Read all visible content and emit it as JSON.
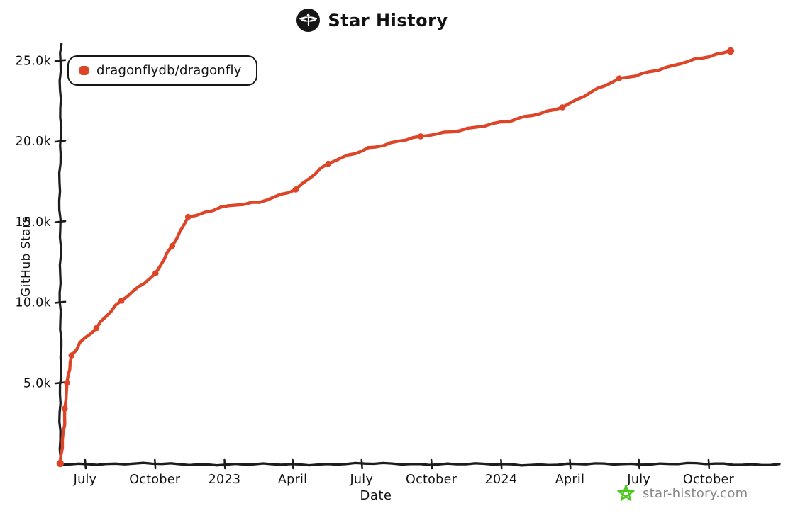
{
  "title": {
    "text": "Star History",
    "logo": "dragonfly-logo"
  },
  "legend": {
    "items": [
      {
        "label": "dragonflydb/dragonfly",
        "color": "#dd4528"
      }
    ]
  },
  "watermark": {
    "text": "star-history.com",
    "star_color": "#4ac91c",
    "text_color": "#888888"
  },
  "colors": {
    "axis": "#1c1c1c",
    "text": "#111111",
    "background": "#ffffff"
  },
  "chart_data": {
    "type": "line",
    "title": "Star History",
    "xlabel": "Date",
    "ylabel": "GitHub Stars",
    "grid": false,
    "legend_position": "top-left",
    "ylim": [
      0,
      26000
    ],
    "x_range": [
      "2022-05-29",
      "2024-11-05"
    ],
    "y_ticks": [
      {
        "label": "5.0k",
        "value": 5000
      },
      {
        "label": "10.0k",
        "value": 10000
      },
      {
        "label": "15.0k",
        "value": 15000
      },
      {
        "label": "20.0k",
        "value": 20000
      },
      {
        "label": "25.0k",
        "value": 25000
      }
    ],
    "x_ticks": [
      {
        "label": "July",
        "date": "2022-07-01"
      },
      {
        "label": "October",
        "date": "2022-10-01"
      },
      {
        "label": "2023",
        "date": "2023-01-01"
      },
      {
        "label": "April",
        "date": "2023-04-01"
      },
      {
        "label": "July",
        "date": "2023-07-01"
      },
      {
        "label": "October",
        "date": "2023-10-01"
      },
      {
        "label": "2024",
        "date": "2024-01-01"
      },
      {
        "label": "April",
        "date": "2024-04-01"
      },
      {
        "label": "July",
        "date": "2024-07-01"
      },
      {
        "label": "October",
        "date": "2024-10-01"
      }
    ],
    "series": [
      {
        "name": "dragonflydb/dragonfly",
        "color": "#dd4528",
        "points": [
          {
            "date": "2022-05-29",
            "stars": 0,
            "marker": true
          },
          {
            "date": "2022-06-04",
            "stars": 3400,
            "marker": true
          },
          {
            "date": "2022-06-07",
            "stars": 5000,
            "marker": true
          },
          {
            "date": "2022-06-13",
            "stars": 6700,
            "marker": true
          },
          {
            "date": "2022-06-24",
            "stars": 7500,
            "marker": false
          },
          {
            "date": "2022-07-16",
            "stars": 8400,
            "marker": true
          },
          {
            "date": "2022-08-18",
            "stars": 10100,
            "marker": true
          },
          {
            "date": "2022-10-02",
            "stars": 11800,
            "marker": true
          },
          {
            "date": "2022-10-24",
            "stars": 13500,
            "marker": true
          },
          {
            "date": "2022-11-14",
            "stars": 15300,
            "marker": true
          },
          {
            "date": "2022-12-27",
            "stars": 15900,
            "marker": false
          },
          {
            "date": "2023-02-16",
            "stars": 16200,
            "marker": false
          },
          {
            "date": "2023-04-05",
            "stars": 17000,
            "marker": true
          },
          {
            "date": "2023-05-18",
            "stars": 18600,
            "marker": true
          },
          {
            "date": "2023-07-10",
            "stars": 19600,
            "marker": false
          },
          {
            "date": "2023-09-17",
            "stars": 20300,
            "marker": true
          },
          {
            "date": "2023-11-18",
            "stars": 20800,
            "marker": false
          },
          {
            "date": "2024-01-12",
            "stars": 21200,
            "marker": false
          },
          {
            "date": "2024-03-22",
            "stars": 22100,
            "marker": true
          },
          {
            "date": "2024-06-05",
            "stars": 23900,
            "marker": true
          },
          {
            "date": "2024-08-16",
            "stars": 24700,
            "marker": false
          },
          {
            "date": "2024-10-30",
            "stars": 25600,
            "marker": true
          }
        ]
      }
    ]
  }
}
